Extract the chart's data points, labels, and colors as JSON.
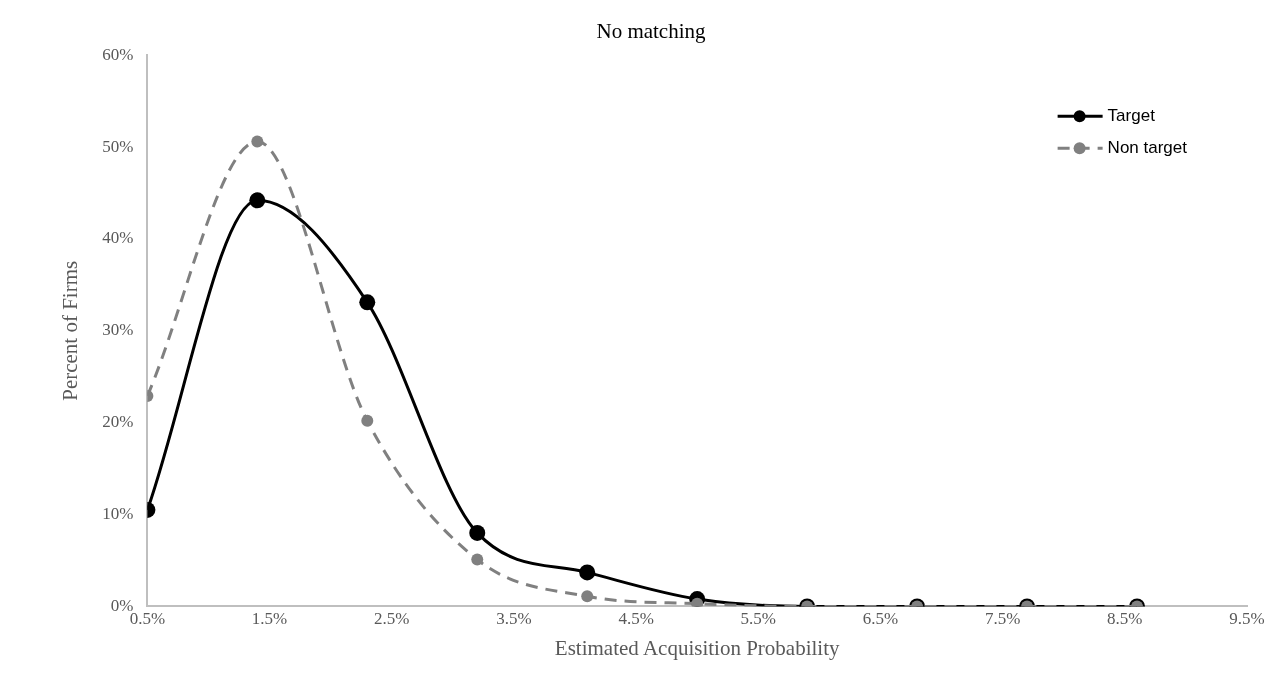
{
  "chart_data": {
    "type": "line",
    "title": "No matching",
    "xlabel": "Estimated Acquisition Probability",
    "ylabel": "Percent of Firms",
    "x": [
      0.5,
      1.4,
      2.3,
      3.2,
      4.1,
      5.0,
      5.9,
      6.8,
      7.7,
      8.6
    ],
    "xlim": [
      0.5,
      9.5
    ],
    "xticks": [
      {
        "value": 0.5,
        "label": "0.5%"
      },
      {
        "value": 1.5,
        "label": "1.5%"
      },
      {
        "value": 2.5,
        "label": "2.5%"
      },
      {
        "value": 3.5,
        "label": "3.5%"
      },
      {
        "value": 4.5,
        "label": "4.5%"
      },
      {
        "value": 5.5,
        "label": "5.5%"
      },
      {
        "value": 6.5,
        "label": "6.5%"
      },
      {
        "value": 7.5,
        "label": "7.5%"
      },
      {
        "value": 8.5,
        "label": "8.5%"
      },
      {
        "value": 9.5,
        "label": "9.5%"
      }
    ],
    "ylim": [
      0,
      60
    ],
    "yticks": [
      {
        "value": 0,
        "label": "0%"
      },
      {
        "value": 10,
        "label": "10%"
      },
      {
        "value": 20,
        "label": "20%"
      },
      {
        "value": 30,
        "label": "30%"
      },
      {
        "value": 40,
        "label": "40%"
      },
      {
        "value": 50,
        "label": "50%"
      },
      {
        "value": 60,
        "label": "60%"
      }
    ],
    "series": [
      {
        "name": "Target",
        "color": "#000000",
        "line_style": "solid",
        "values": [
          10.5,
          44.2,
          33.1,
          8.0,
          3.7,
          0.8,
          0,
          0,
          0,
          0
        ]
      },
      {
        "name": "Non target",
        "color": "#808080",
        "line_style": "dashed",
        "values": [
          22.9,
          50.6,
          20.2,
          5.1,
          1.1,
          0.3,
          0,
          0,
          0,
          0
        ]
      }
    ],
    "marker": "circle",
    "legend": "top right",
    "grid": false
  }
}
